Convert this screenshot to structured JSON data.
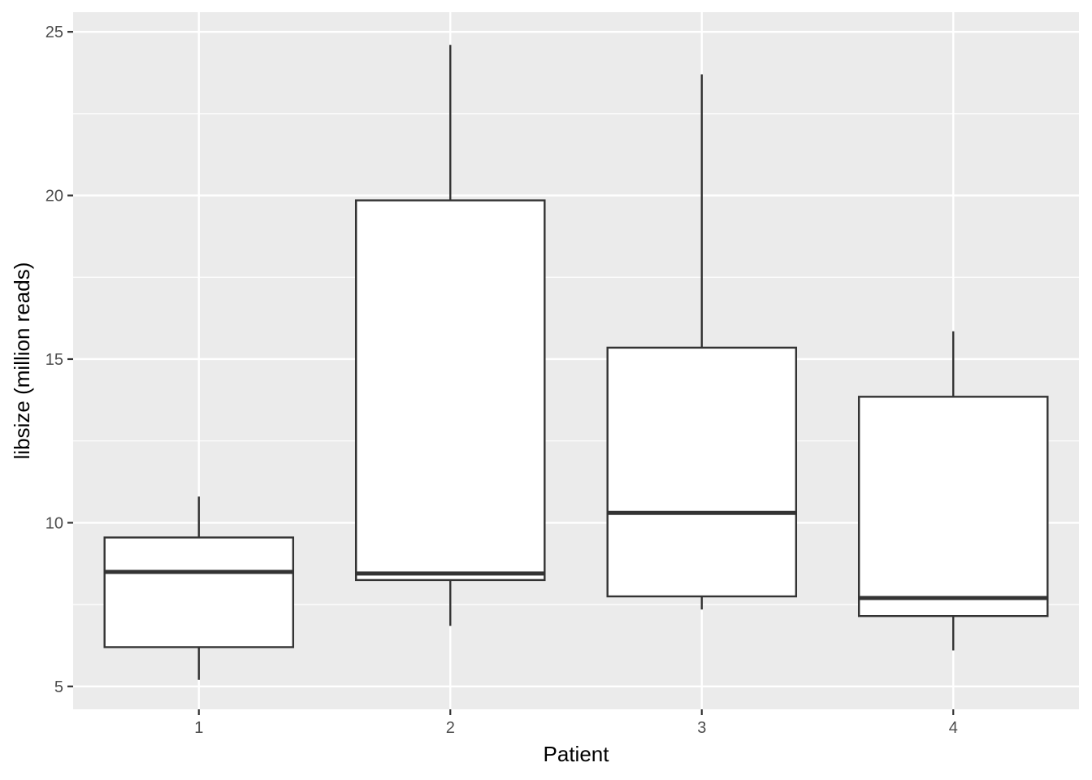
{
  "chart_data": {
    "type": "boxplot",
    "title": "",
    "xlabel": "Patient",
    "ylabel": "libsize (million reads)",
    "categories": [
      "1",
      "2",
      "3",
      "4"
    ],
    "ylim": [
      4.3,
      25.6
    ],
    "yticks": [
      5,
      10,
      15,
      20,
      25
    ],
    "grid": true,
    "legend": "none",
    "boxes": [
      {
        "category": "1",
        "whisker_low": 5.2,
        "q1": 6.2,
        "median": 8.5,
        "q3": 9.55,
        "whisker_high": 10.8
      },
      {
        "category": "2",
        "whisker_low": 6.85,
        "q1": 8.25,
        "median": 8.45,
        "q3": 19.85,
        "whisker_high": 24.6
      },
      {
        "category": "3",
        "whisker_low": 7.35,
        "q1": 7.75,
        "median": 10.3,
        "q3": 15.35,
        "whisker_high": 23.7
      },
      {
        "category": "4",
        "whisker_low": 6.1,
        "q1": 7.15,
        "median": 7.7,
        "q3": 13.85,
        "whisker_high": 15.85
      }
    ],
    "colors": {
      "panel": "#ebebeb",
      "grid": "#ffffff",
      "box_fill": "#ffffff",
      "box_stroke": "#333333",
      "tick_text": "#4d4d4d",
      "axis_title": "#000000"
    }
  }
}
